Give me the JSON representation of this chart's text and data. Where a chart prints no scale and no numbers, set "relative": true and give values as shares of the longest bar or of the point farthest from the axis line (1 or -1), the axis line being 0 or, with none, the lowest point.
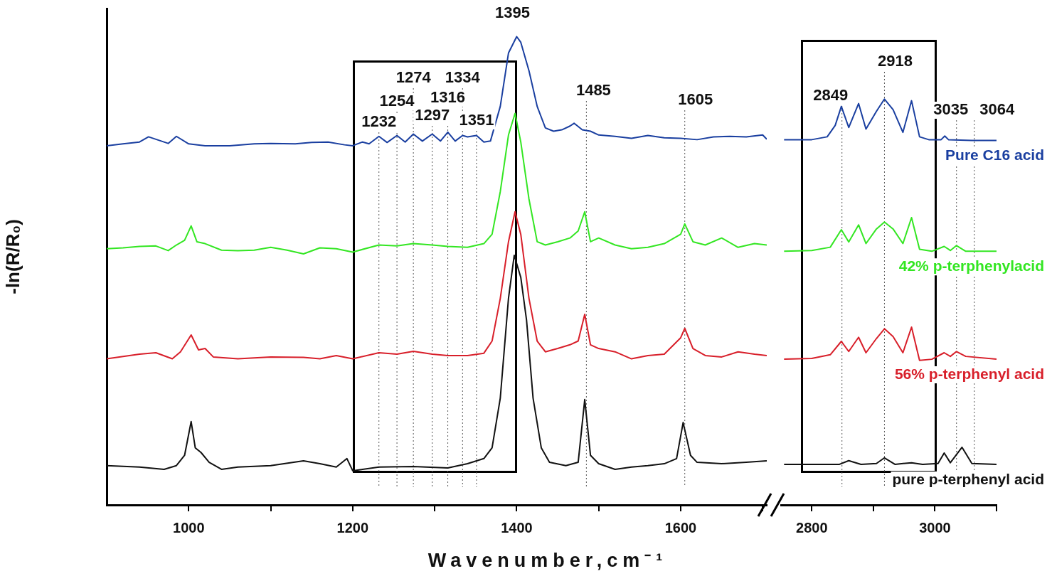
{
  "chart_data": [
    {
      "type": "line",
      "relative": true,
      "xlabel": "Wavenumber,cm⁻¹",
      "ylabel": "-ln(R/R₀)",
      "xlim": [
        900,
        1705
      ],
      "xticks": [
        1000,
        {
          "value": 1100,
          "label": null
        },
        1200,
        {
          "value": 1300,
          "label": null
        },
        1400,
        {
          "value": 1500,
          "label": null
        },
        1600,
        {
          "value": 1700,
          "label": null
        }
      ],
      "tick_labels": "x",
      "marker": "none",
      "series": [
        {
          "color": "#1a3fa0",
          "x": [
            900,
            920,
            940,
            951,
            975,
            985,
            1000,
            1020,
            1050,
            1080,
            1100,
            1130,
            1150,
            1170,
            1190,
            1200,
            1212,
            1220,
            1232,
            1242,
            1254,
            1264,
            1274,
            1285,
            1297,
            1307,
            1316,
            1325,
            1334,
            1340,
            1351,
            1360,
            1368,
            1380,
            1390,
            1400,
            1405,
            1415,
            1425,
            1435,
            1445,
            1455,
            1465,
            1470,
            1480,
            1490,
            1500,
            1520,
            1540,
            1560,
            1580,
            1600,
            1620,
            1640,
            1660,
            1680,
            1700,
            1705
          ],
          "values": [
            0.767,
            0.771,
            0.775,
            0.786,
            0.772,
            0.787,
            0.771,
            0.767,
            0.767,
            0.771,
            0.772,
            0.771,
            0.774,
            0.775,
            0.769,
            0.767,
            0.775,
            0.771,
            0.787,
            0.774,
            0.789,
            0.775,
            0.792,
            0.777,
            0.792,
            0.777,
            0.796,
            0.777,
            0.789,
            0.786,
            0.789,
            0.775,
            0.777,
            0.851,
            0.965,
            1,
            0.988,
            0.927,
            0.851,
            0.805,
            0.798,
            0.801,
            0.809,
            0.815,
            0.801,
            0.798,
            0.79,
            0.787,
            0.783,
            0.789,
            0.784,
            0.783,
            0.78,
            0.786,
            0.787,
            0.786,
            0.79,
            0.781
          ]
        },
        {
          "color": "#33e622",
          "x": [
            900,
            920,
            940,
            960,
            975,
            985,
            995,
            1003,
            1010,
            1020,
            1040,
            1060,
            1080,
            1100,
            1120,
            1140,
            1160,
            1180,
            1200,
            1232,
            1254,
            1274,
            1297,
            1316,
            1340,
            1360,
            1370,
            1380,
            1390,
            1398,
            1405,
            1415,
            1425,
            1435,
            1450,
            1465,
            1475,
            1483,
            1490,
            1500,
            1520,
            1540,
            1560,
            1580,
            1600,
            1605,
            1615,
            1630,
            1650,
            1670,
            1690,
            1705
          ],
          "values": [
            0.547,
            0.549,
            0.552,
            0.553,
            0.543,
            0.555,
            0.565,
            0.596,
            0.562,
            0.558,
            0.544,
            0.543,
            0.544,
            0.55,
            0.544,
            0.536,
            0.549,
            0.547,
            0.54,
            0.555,
            0.553,
            0.558,
            0.555,
            0.552,
            0.55,
            0.558,
            0.578,
            0.669,
            0.79,
            0.836,
            0.775,
            0.653,
            0.562,
            0.555,
            0.562,
            0.57,
            0.585,
            0.626,
            0.562,
            0.57,
            0.555,
            0.547,
            0.55,
            0.558,
            0.578,
            0.6,
            0.562,
            0.555,
            0.57,
            0.55,
            0.558,
            0.555
          ]
        },
        {
          "color": "#d81f2a",
          "x": [
            900,
            940,
            960,
            980,
            990,
            1003,
            1012,
            1020,
            1030,
            1060,
            1100,
            1140,
            1160,
            1180,
            1200,
            1232,
            1254,
            1274,
            1297,
            1316,
            1340,
            1360,
            1370,
            1380,
            1390,
            1398,
            1405,
            1415,
            1425,
            1435,
            1450,
            1465,
            1475,
            1483,
            1490,
            1500,
            1520,
            1540,
            1560,
            1580,
            1600,
            1605,
            1615,
            1630,
            1650,
            1670,
            1690,
            1705
          ],
          "values": [
            0.312,
            0.322,
            0.325,
            0.312,
            0.327,
            0.363,
            0.331,
            0.334,
            0.316,
            0.312,
            0.316,
            0.315,
            0.312,
            0.319,
            0.312,
            0.325,
            0.322,
            0.328,
            0.322,
            0.319,
            0.319,
            0.324,
            0.35,
            0.441,
            0.562,
            0.626,
            0.578,
            0.441,
            0.35,
            0.327,
            0.334,
            0.342,
            0.35,
            0.407,
            0.342,
            0.334,
            0.327,
            0.312,
            0.319,
            0.322,
            0.357,
            0.377,
            0.334,
            0.319,
            0.316,
            0.327,
            0.322,
            0.319
          ]
        },
        {
          "color": "#111111",
          "x": [
            900,
            940,
            970,
            985,
            995,
            1003,
            1008,
            1015,
            1025,
            1040,
            1060,
            1100,
            1140,
            1160,
            1180,
            1193,
            1200,
            1232,
            1274,
            1316,
            1340,
            1360,
            1370,
            1380,
            1390,
            1397,
            1405,
            1412,
            1420,
            1430,
            1440,
            1460,
            1475,
            1483,
            1490,
            1500,
            1520,
            1540,
            1560,
            1580,
            1595,
            1603,
            1612,
            1620,
            1650,
            1680,
            1705
          ],
          "values": [
            0.084,
            0.081,
            0.076,
            0.084,
            0.106,
            0.178,
            0.122,
            0.112,
            0.091,
            0.076,
            0.081,
            0.084,
            0.094,
            0.088,
            0.081,
            0.099,
            0.073,
            0.081,
            0.082,
            0.079,
            0.088,
            0.099,
            0.122,
            0.228,
            0.441,
            0.533,
            0.486,
            0.395,
            0.228,
            0.122,
            0.091,
            0.084,
            0.091,
            0.225,
            0.106,
            0.088,
            0.076,
            0.081,
            0.084,
            0.088,
            0.099,
            0.176,
            0.106,
            0.091,
            0.088,
            0.091,
            0.094
          ]
        }
      ],
      "annotations": [
        {
          "text": "1395",
          "x": 1400,
          "y": 1
        }
      ],
      "ref_lines": [
        {
          "axis": "x",
          "value": 1232,
          "label": "1232",
          "color": "#555555",
          "line_style": "dotted"
        },
        {
          "axis": "x",
          "value": 1254,
          "label": "1254",
          "color": "#555555",
          "line_style": "dotted"
        },
        {
          "axis": "x",
          "value": 1274,
          "label": "1274",
          "color": "#555555",
          "line_style": "dotted"
        },
        {
          "axis": "x",
          "value": 1297,
          "label": "1297",
          "color": "#555555",
          "line_style": "dotted"
        },
        {
          "axis": "x",
          "value": 1316,
          "label": "1316",
          "color": "#555555",
          "line_style": "dotted"
        },
        {
          "axis": "x",
          "value": 1334,
          "label": "1334",
          "color": "#555555",
          "line_style": "dotted"
        },
        {
          "axis": "x",
          "value": 1351,
          "label": "1351",
          "color": "#555555",
          "line_style": "dotted"
        },
        {
          "axis": "x",
          "value": 1485,
          "label": "1485",
          "color": "#555555",
          "line_style": "dotted"
        },
        {
          "axis": "x",
          "value": 1605,
          "label": "1605",
          "color": "#555555",
          "line_style": "dotted"
        }
      ]
    },
    {
      "type": "line",
      "relative": true,
      "xlim": [
        2750,
        3100
      ],
      "xticks": [
        2800,
        {
          "value": 2900,
          "label": null
        },
        3000,
        {
          "value": 3100,
          "label": null
        }
      ],
      "tick_labels": "x",
      "marker": "none",
      "series": [
        {
          "name": "Pure C16 acid",
          "color": "#1a3fa0",
          "x": [
            2755,
            2800,
            2825,
            2838,
            2848,
            2860,
            2876,
            2888,
            2905,
            2918,
            2932,
            2948,
            2962,
            2975,
            2990,
            3010,
            3016,
            3022,
            3060,
            3100
          ],
          "values": [
            0.9,
            0.9,
            0.907,
            0.935,
            0.982,
            0.93,
            0.989,
            0.926,
            0.97,
            1,
            0.974,
            0.918,
            0.996,
            0.907,
            0.9,
            0.9,
            0.909,
            0.9,
            0.898,
            0.898
          ]
        },
        {
          "name": "42% p-terphenylacid",
          "color": "#33e622",
          "x": [
            2755,
            2800,
            2830,
            2848,
            2860,
            2876,
            2888,
            2905,
            2918,
            2932,
            2948,
            2962,
            2975,
            2995,
            3015,
            3025,
            3035,
            3050,
            3100
          ],
          "values": [
            0.625,
            0.627,
            0.635,
            0.678,
            0.648,
            0.69,
            0.644,
            0.68,
            0.697,
            0.68,
            0.644,
            0.708,
            0.63,
            0.625,
            0.637,
            0.627,
            0.639,
            0.625,
            0.625
          ]
        },
        {
          "name": "56% p-terphenyl acid",
          "color": "#d81f2a",
          "x": [
            2755,
            2800,
            2830,
            2848,
            2860,
            2876,
            2888,
            2905,
            2918,
            2932,
            2948,
            2962,
            2975,
            2995,
            3015,
            3025,
            3035,
            3050,
            3100
          ],
          "values": [
            0.359,
            0.361,
            0.37,
            0.403,
            0.378,
            0.413,
            0.375,
            0.41,
            0.434,
            0.415,
            0.375,
            0.438,
            0.356,
            0.359,
            0.375,
            0.366,
            0.378,
            0.366,
            0.359
          ]
        },
        {
          "name": "pure p-terphenyl acid",
          "color": "#111111",
          "x": [
            2755,
            2800,
            2845,
            2860,
            2880,
            2905,
            2918,
            2935,
            2962,
            2980,
            3005,
            3015,
            3025,
            3044,
            3060,
            3100
          ],
          "values": [
            0.1,
            0.1,
            0.1,
            0.109,
            0.1,
            0.102,
            0.116,
            0.1,
            0.104,
            0.1,
            0.102,
            0.128,
            0.104,
            0.142,
            0.102,
            0.1
          ]
        }
      ],
      "ref_lines": [
        {
          "axis": "x",
          "value": 2849,
          "label": "2849",
          "color": "#555555",
          "line_style": "dotted"
        },
        {
          "axis": "x",
          "value": 2918,
          "label": "2918",
          "color": "#555555",
          "line_style": "dotted"
        },
        {
          "axis": "x",
          "value": 3035,
          "label": "3035",
          "color": "#555555",
          "line_style": "dotted"
        },
        {
          "axis": "x",
          "value": 3064,
          "label": "3064",
          "color": "#555555",
          "line_style": "dotted"
        }
      ]
    }
  ]
}
